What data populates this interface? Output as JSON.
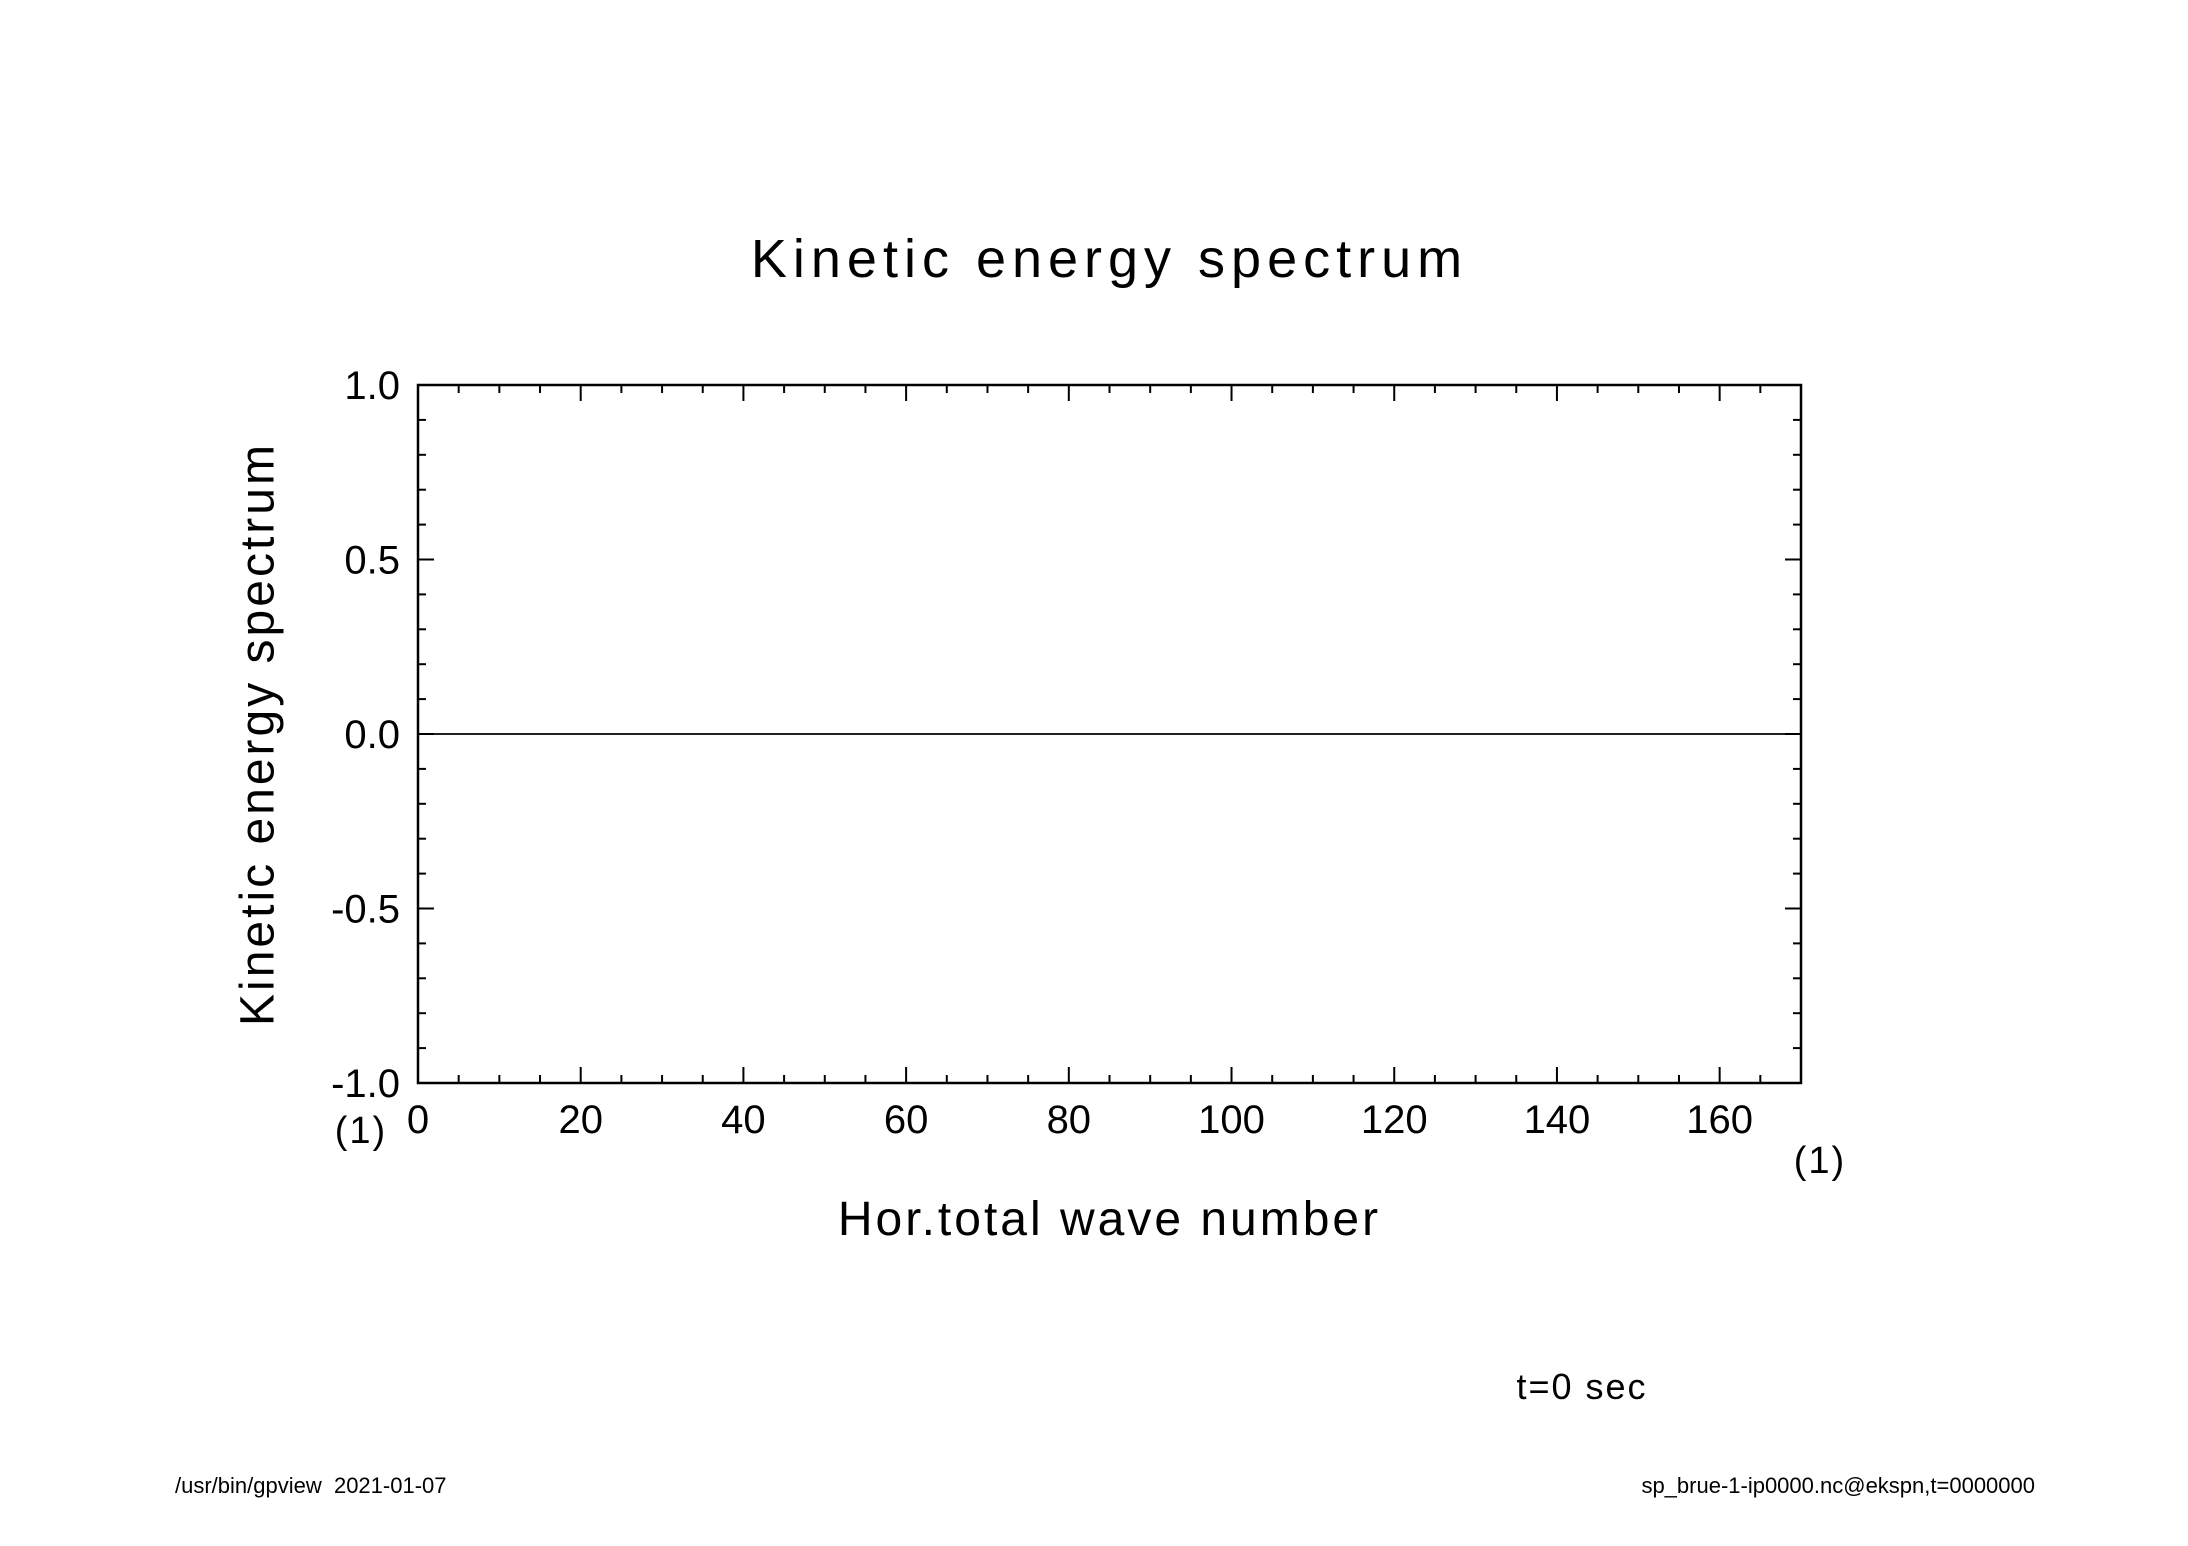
{
  "page": {
    "title": "Kinetic energy spectrum"
  },
  "chart_data": {
    "type": "line",
    "title": "Kinetic energy spectrum",
    "xlabel": "Hor.total wave number",
    "ylabel": "Kinetic energy spectrum",
    "xlim": [
      0,
      170
    ],
    "ylim": [
      -1.0,
      1.0
    ],
    "x_ticks": {
      "values": [
        0,
        20,
        40,
        60,
        80,
        100,
        120,
        140,
        160
      ],
      "labels": [
        "0",
        "20",
        "40",
        "60",
        "80",
        "100",
        "120",
        "140",
        "160"
      ]
    },
    "x_minor_step": 5,
    "y_ticks": {
      "values": [
        -1.0,
        -0.5,
        0.0,
        0.5,
        1.0
      ],
      "labels": [
        "-1.0",
        "-0.5",
        "0.0",
        "0.5",
        "1.0"
      ]
    },
    "y_minor_step": 0.1,
    "x_unit": "(1)",
    "y_unit": "(1)",
    "grid": false,
    "legend": "none",
    "line_color": "#000000",
    "series": [
      {
        "name": "Kinetic energy spectrum at t=0 sec",
        "x_range": [
          0,
          170
        ],
        "y_constant": 0.0
      }
    ]
  },
  "annotations": {
    "time_label": "t=0 sec",
    "footer_left": "/usr/bin/gpview  2021-01-07",
    "footer_right": "sp_brue-1-ip0000.nc@ekspn,t=0000000"
  }
}
